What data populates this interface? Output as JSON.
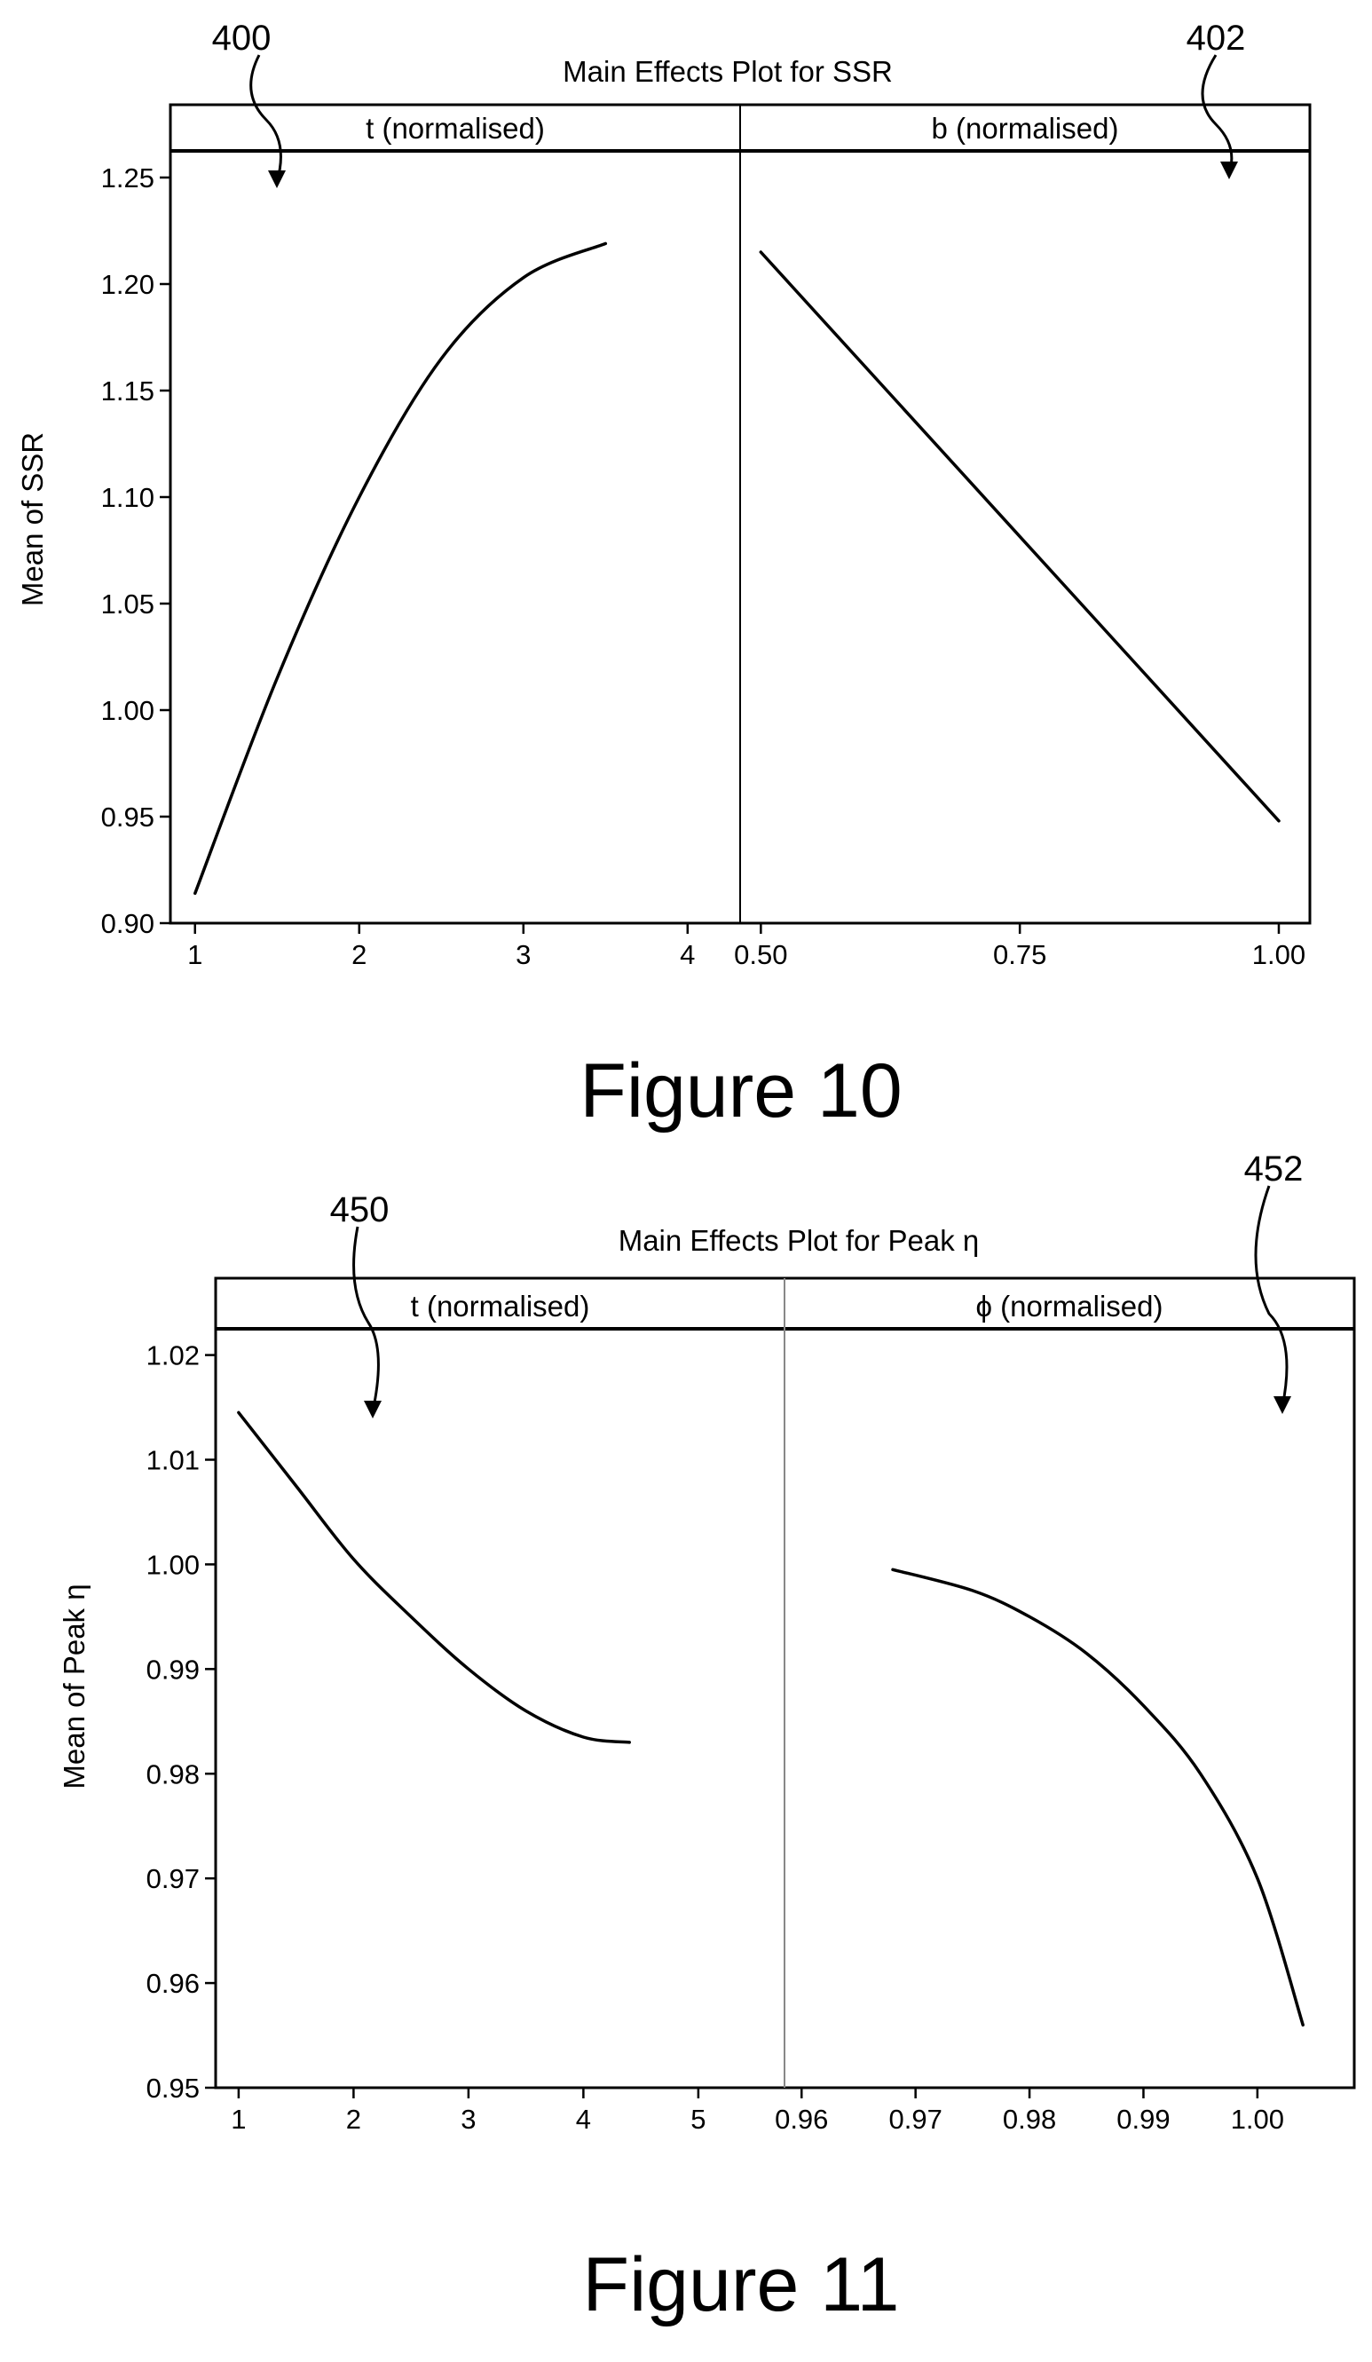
{
  "chart_data": [
    {
      "type": "line",
      "figure_caption": "Figure 10",
      "title": "Main Effects Plot for SSR",
      "ylabel": "Mean of SSR",
      "ylim": [
        0.9,
        1.26
      ],
      "yticks": [
        0.9,
        0.95,
        1.0,
        1.05,
        1.1,
        1.15,
        1.2,
        1.25
      ],
      "ytick_labels": [
        "0.90",
        "0.95",
        "1.00",
        "1.05",
        "1.10",
        "1.15",
        "1.20",
        "1.25"
      ],
      "reference_labels": [
        "400",
        "402"
      ],
      "grid": false,
      "panels": [
        {
          "label": "t  (normalised)",
          "xlim": [
            0.85,
            4.32
          ],
          "xticks": [
            1,
            2,
            3,
            4
          ],
          "xtick_labels": [
            "1",
            "2",
            "3",
            "4"
          ],
          "x": [
            1.0,
            1.5,
            2.0,
            2.5,
            3.0,
            3.5
          ],
          "y": [
            0.914,
            1.015,
            1.1,
            1.165,
            1.203,
            1.219
          ]
        },
        {
          "label": "b  (normalised)",
          "xlim": [
            0.48,
            1.03
          ],
          "xticks": [
            0.5,
            0.75,
            1.0
          ],
          "xtick_labels": [
            "0.50",
            "0.75",
            "1.00"
          ],
          "x": [
            0.5,
            1.0
          ],
          "y": [
            1.215,
            0.948
          ]
        }
      ]
    },
    {
      "type": "line",
      "figure_caption": "Figure 11",
      "title": "Main Effects Plot for Peak η",
      "ylabel": "Mean of Peak η",
      "ylim": [
        0.95,
        1.022
      ],
      "yticks": [
        0.95,
        0.96,
        0.97,
        0.98,
        0.99,
        1.0,
        1.01,
        1.02
      ],
      "ytick_labels": [
        "0.95",
        "0.96",
        "0.97",
        "0.98",
        "0.99",
        "1.00",
        "1.01",
        "1.02"
      ],
      "reference_labels": [
        "450",
        "452"
      ],
      "grid": false,
      "panels": [
        {
          "label": "t  (normalised)",
          "xlim": [
            0.8,
            5.75
          ],
          "xticks": [
            1,
            2,
            3,
            4,
            5
          ],
          "xtick_labels": [
            "1",
            "2",
            "3",
            "4",
            "5"
          ],
          "x": [
            1.0,
            1.5,
            2.0,
            2.5,
            3.0,
            3.5,
            4.0,
            4.4
          ],
          "y": [
            1.0145,
            1.0075,
            1.0005,
            0.995,
            0.99,
            0.986,
            0.9835,
            0.983
          ]
        },
        {
          "label": "ϕ  (normalised)",
          "xlim": [
            0.9585,
            1.0085
          ],
          "xticks": [
            0.96,
            0.97,
            0.98,
            0.99,
            1.0
          ],
          "xtick_labels": [
            "0.96",
            "0.97",
            "0.98",
            "0.99",
            "1.00"
          ],
          "x": [
            0.968,
            0.975,
            0.98,
            0.985,
            0.99,
            0.995,
            1.0,
            1.004
          ],
          "y": [
            0.9995,
            0.9975,
            0.995,
            0.9915,
            0.9865,
            0.98,
            0.97,
            0.956
          ]
        }
      ]
    }
  ]
}
